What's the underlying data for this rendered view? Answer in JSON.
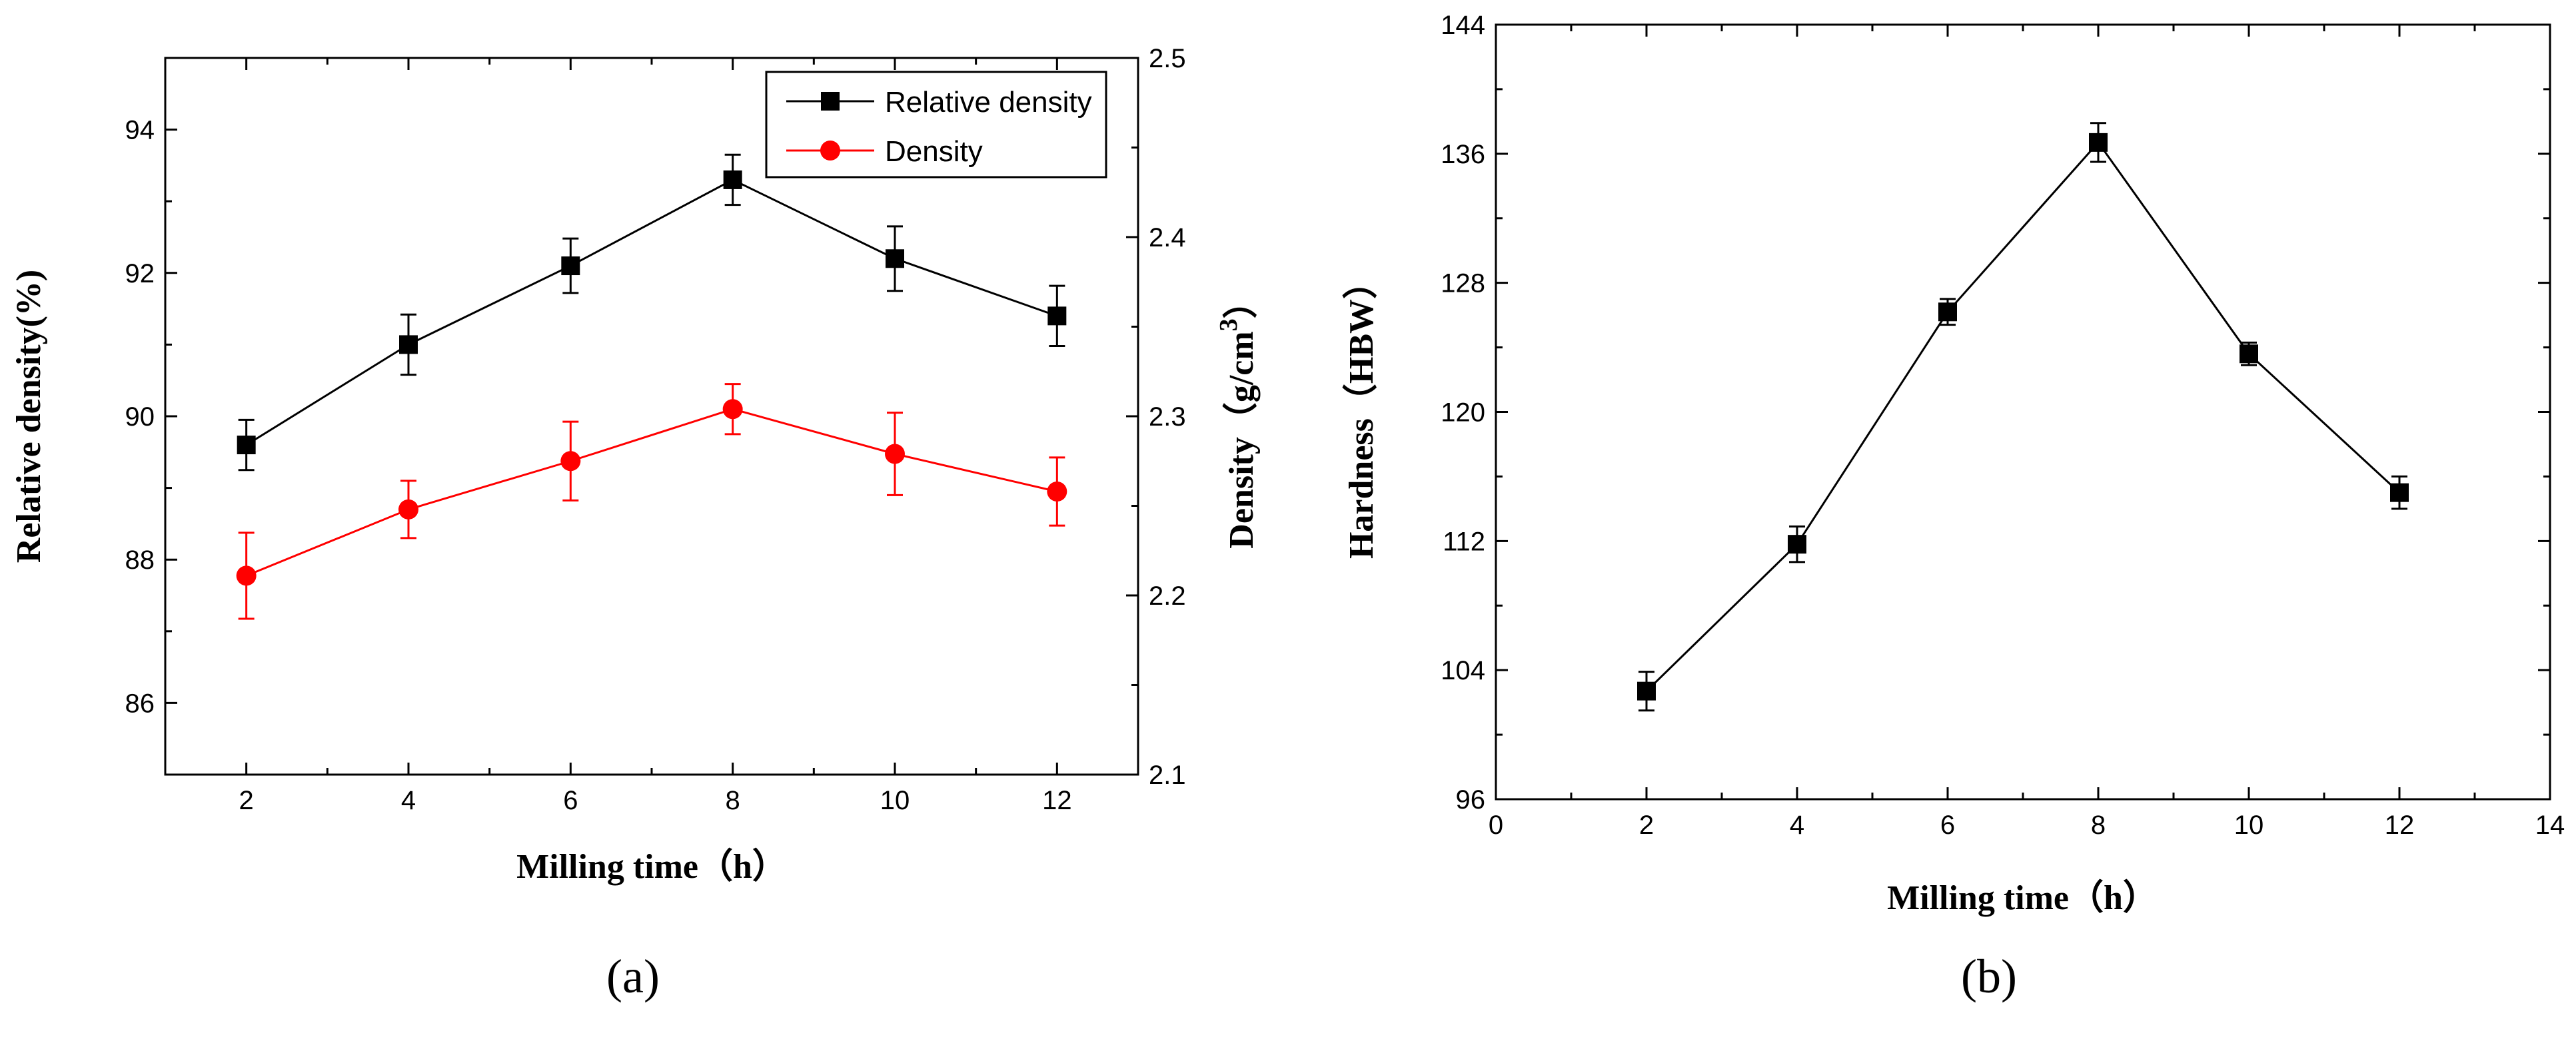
{
  "chart_data": [
    {
      "type": "line",
      "panel_label": "(a)",
      "xlabel": "Milling time（h）",
      "ylabel": "Relative density(%)",
      "ylabel_right_prefix": "Density（g/cm",
      "ylabel_right_sup": "3",
      "ylabel_right_suffix": "）",
      "xlim": [
        1,
        13
      ],
      "ylim": [
        85,
        95
      ],
      "ylim_right": [
        2.1,
        2.5
      ],
      "x_ticks": [
        2,
        4,
        6,
        8,
        10,
        12
      ],
      "y_ticks": [
        86,
        88,
        90,
        92,
        94
      ],
      "y_ticks_right": [
        "2.1",
        "2.2",
        "2.3",
        "2.4",
        "2.5"
      ],
      "legend_position": "top-right",
      "series": [
        {
          "name": "Relative density",
          "axis": "left",
          "color": "#000000",
          "marker": "square",
          "x": [
            2,
            4,
            6,
            8,
            10,
            12
          ],
          "values": [
            89.6,
            91.0,
            92.1,
            93.3,
            92.2,
            91.4
          ],
          "errors": [
            0.35,
            0.42,
            0.38,
            0.35,
            0.45,
            0.42
          ]
        },
        {
          "name": "Density",
          "axis": "right",
          "color": "#ff0000",
          "marker": "circle",
          "x": [
            2,
            4,
            6,
            8,
            10,
            12
          ],
          "values": [
            2.211,
            2.248,
            2.275,
            2.304,
            2.279,
            2.258
          ],
          "errors": [
            0.024,
            0.016,
            0.022,
            0.014,
            0.023,
            0.019
          ]
        }
      ]
    },
    {
      "type": "line",
      "panel_label": "(b)",
      "xlabel": "Milling time（h）",
      "ylabel": "Hardness（HBW）",
      "xlim": [
        0,
        14
      ],
      "ylim": [
        96,
        144
      ],
      "x_ticks": [
        0,
        2,
        4,
        6,
        8,
        10,
        12,
        14
      ],
      "y_ticks": [
        96,
        104,
        112,
        120,
        128,
        136,
        144
      ],
      "series": [
        {
          "name": "Hardness",
          "axis": "left",
          "color": "#000000",
          "marker": "square",
          "x": [
            2,
            4,
            6,
            8,
            10,
            12
          ],
          "values": [
            102.7,
            111.8,
            126.2,
            136.7,
            123.6,
            115.0
          ],
          "errors": [
            1.2,
            1.1,
            0.8,
            1.2,
            0.7,
            1.0
          ]
        }
      ]
    }
  ]
}
